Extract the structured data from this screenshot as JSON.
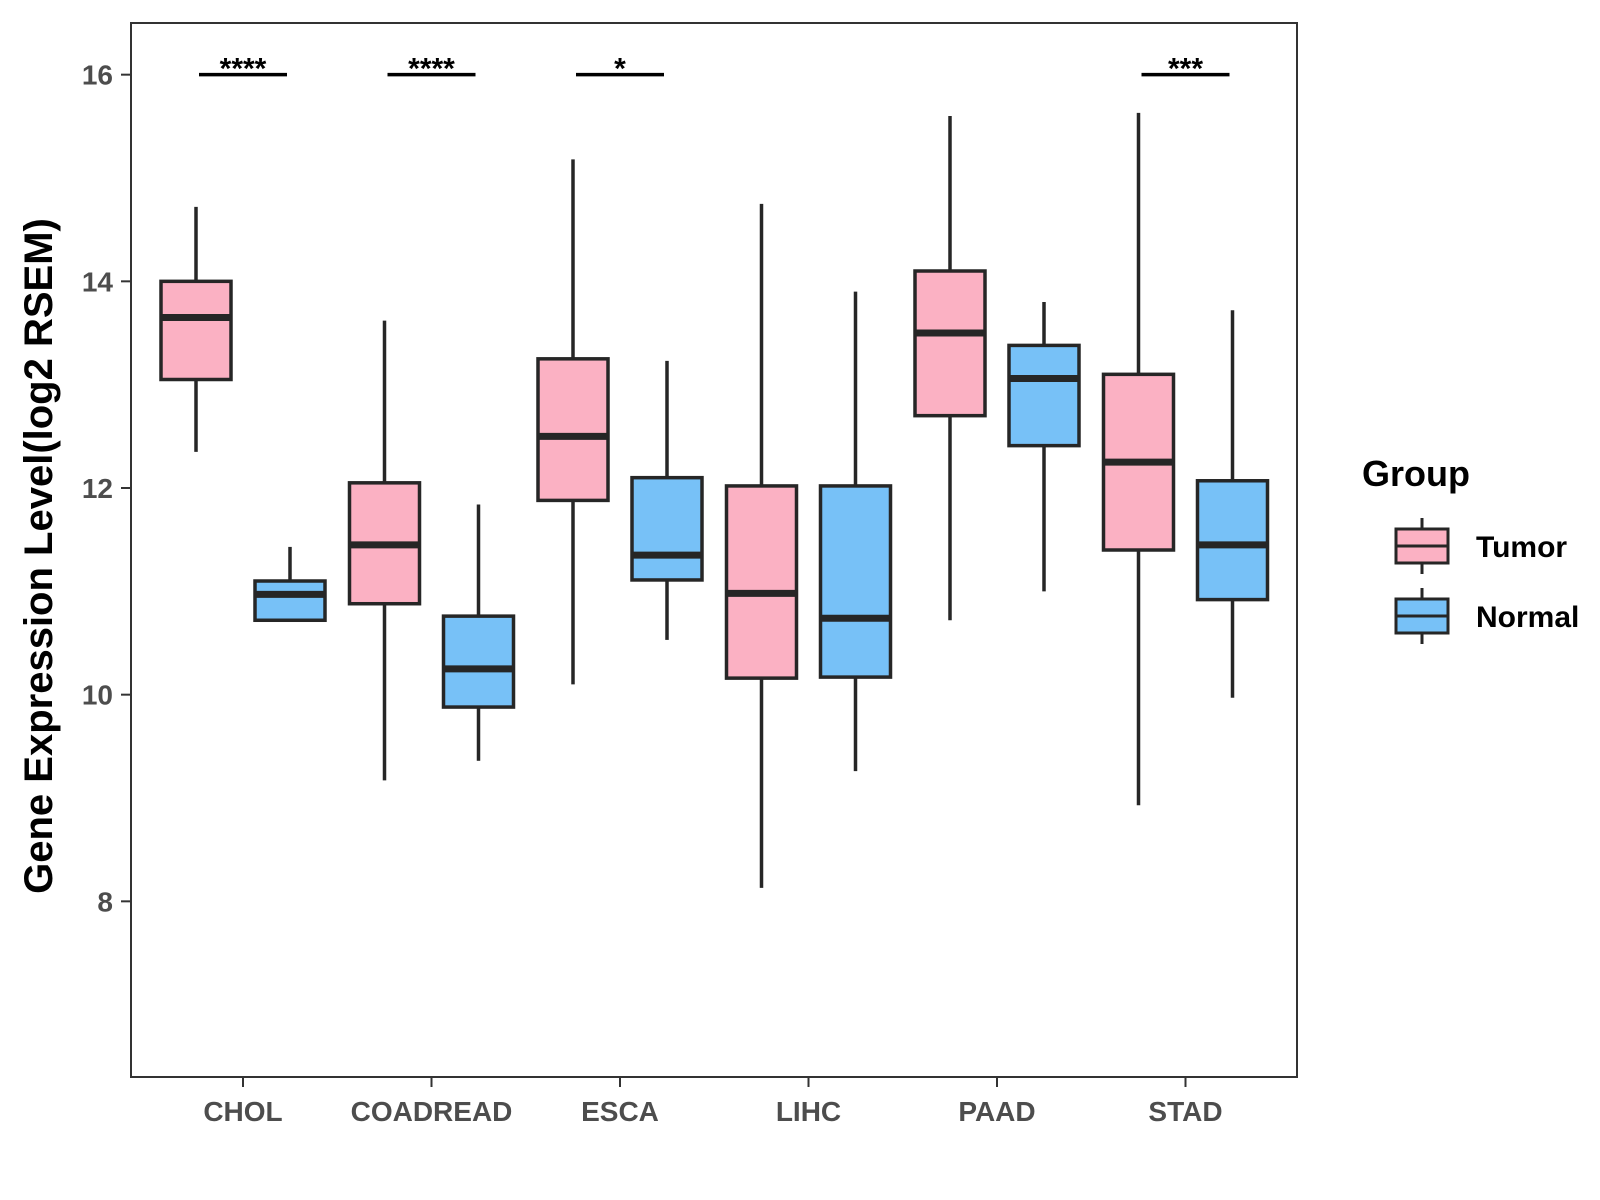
{
  "chart_data": {
    "type": "boxplot",
    "title": "",
    "xlabel": "",
    "ylabel": "Gene Expression Level(log2 RSEM)",
    "ylim": [
      6.3,
      16.5
    ],
    "yticks": [
      8,
      10,
      12,
      14,
      16
    ],
    "ytick_labels": [
      "8",
      "10",
      "12",
      "14",
      "16"
    ],
    "categories": [
      "CHOL",
      "COADREAD",
      "ESCA",
      "LIHC",
      "PAAD",
      "STAD"
    ],
    "series": [
      {
        "name": "Tumor",
        "color": "#FBB1C3",
        "boxes": [
          {
            "category": "CHOL",
            "whisker_low": 12.35,
            "q1": 13.05,
            "median": 13.65,
            "q3": 14.0,
            "whisker_high": 14.72
          },
          {
            "category": "COADREAD",
            "whisker_low": 9.17,
            "q1": 10.88,
            "median": 11.45,
            "q3": 12.05,
            "whisker_high": 13.62
          },
          {
            "category": "ESCA",
            "whisker_low": 10.1,
            "q1": 11.88,
            "median": 12.5,
            "q3": 13.25,
            "whisker_high": 15.18
          },
          {
            "category": "LIHC",
            "whisker_low": 8.13,
            "q1": 10.16,
            "median": 10.98,
            "q3": 12.02,
            "whisker_high": 14.75
          },
          {
            "category": "PAAD",
            "whisker_low": 10.72,
            "q1": 12.7,
            "median": 13.5,
            "q3": 14.1,
            "whisker_high": 15.6
          },
          {
            "category": "STAD",
            "whisker_low": 8.93,
            "q1": 11.4,
            "median": 12.25,
            "q3": 13.1,
            "whisker_high": 15.63
          }
        ]
      },
      {
        "name": "Normal",
        "color": "#77C1F7",
        "boxes": [
          {
            "category": "CHOL",
            "whisker_low": 10.72,
            "q1": 10.72,
            "median": 10.97,
            "q3": 11.1,
            "whisker_high": 11.43
          },
          {
            "category": "COADREAD",
            "whisker_low": 9.36,
            "q1": 9.88,
            "median": 10.25,
            "q3": 10.76,
            "whisker_high": 11.84
          },
          {
            "category": "ESCA",
            "whisker_low": 10.53,
            "q1": 11.11,
            "median": 11.35,
            "q3": 12.1,
            "whisker_high": 13.23
          },
          {
            "category": "LIHC",
            "whisker_low": 9.26,
            "q1": 10.17,
            "median": 10.74,
            "q3": 12.02,
            "whisker_high": 13.9
          },
          {
            "category": "PAAD",
            "whisker_low": 11.0,
            "q1": 12.41,
            "median": 13.06,
            "q3": 13.38,
            "whisker_high": 13.8
          },
          {
            "category": "STAD",
            "whisker_low": 9.97,
            "q1": 10.92,
            "median": 11.45,
            "q3": 12.07,
            "whisker_high": 13.72
          }
        ]
      }
    ],
    "significance": [
      {
        "category": "CHOL",
        "label": "****",
        "y": 16.0
      },
      {
        "category": "COADREAD",
        "label": "****",
        "y": 16.0
      },
      {
        "category": "ESCA",
        "label": "*",
        "y": 16.0
      },
      {
        "category": "STAD",
        "label": "***",
        "y": 16.0
      }
    ],
    "legend": {
      "title": "Group",
      "position": "right",
      "entries": [
        {
          "label": "Tumor",
          "color": "#FBB1C3"
        },
        {
          "label": "Normal",
          "color": "#77C1F7"
        }
      ]
    },
    "grid": false,
    "outline_color": "#262626"
  }
}
